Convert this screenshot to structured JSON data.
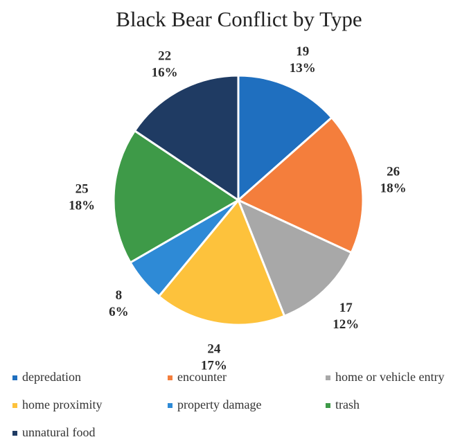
{
  "chart_data": {
    "type": "pie",
    "title": "Black Bear Conflict by Type",
    "slices": [
      {
        "label": "depredation",
        "value": 19,
        "percent": "13%",
        "color": "#1f6fbf"
      },
      {
        "label": "encounter",
        "value": 26,
        "percent": "18%",
        "color": "#f47e3c"
      },
      {
        "label": "home or vehicle entry",
        "value": 17,
        "percent": "12%",
        "color": "#a8a8a8"
      },
      {
        "label": "home proximity",
        "value": 24,
        "percent": "17%",
        "color": "#fdc23c"
      },
      {
        "label": "property damage",
        "value": 8,
        "percent": "6%",
        "color": "#2e8ad6"
      },
      {
        "label": "trash",
        "value": 25,
        "percent": "18%",
        "color": "#3e9a48"
      },
      {
        "label": "unnatural food",
        "value": 22,
        "percent": "16%",
        "color": "#1f3b63"
      }
    ],
    "legend_position": "bottom",
    "start_angle": "12 o'clock",
    "direction": "clockwise"
  }
}
